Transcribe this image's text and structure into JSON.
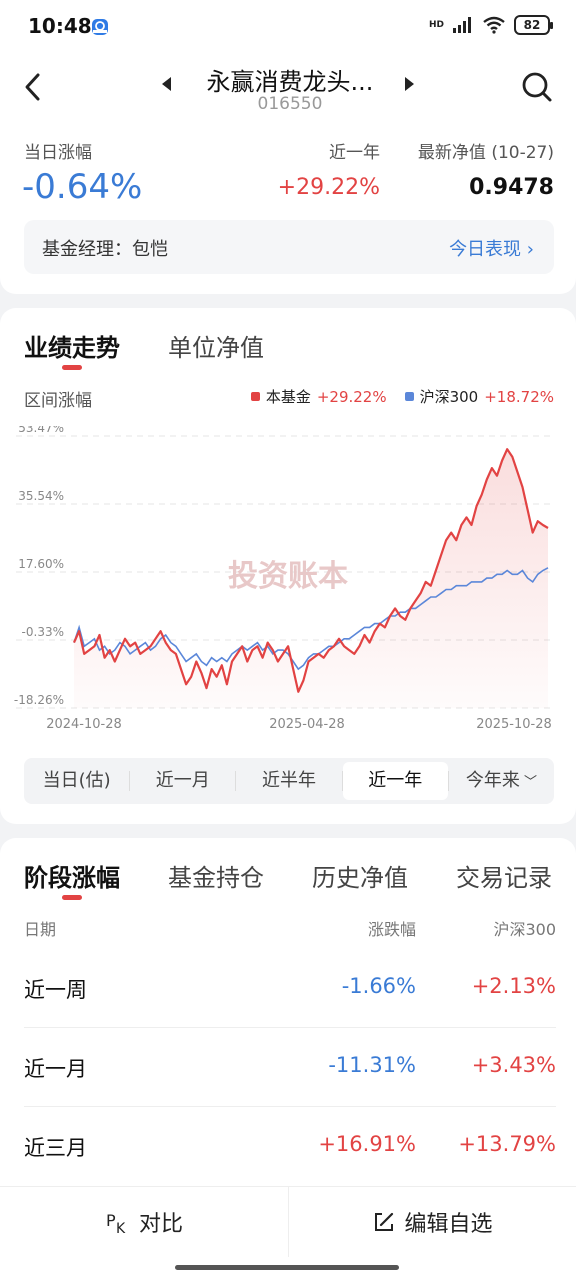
{
  "status": {
    "time": "10:48",
    "network": "HD",
    "battery": "82"
  },
  "header": {
    "fund_name": "永赢消费龙头...",
    "fund_code": "016550",
    "day_change_label": "当日涨幅",
    "day_change_value": "-0.64%",
    "year_label": "近一年",
    "year_value": "+29.22%",
    "nav_label": "最新净值 (10-27)",
    "nav_value": "0.9478",
    "manager": "基金经理：包恺",
    "today_link": "今日表现"
  },
  "chart_tabs": {
    "performance": "业绩走势",
    "unit_nav": "单位净值"
  },
  "range_label": "区间涨幅",
  "legend": {
    "fund_name": "本基金",
    "fund_value": "+29.22%",
    "fund_color": "#e24343",
    "index_name": "沪深300",
    "index_value": "+18.72%",
    "index_color": "#5b87d9"
  },
  "watermark": "投资账本",
  "chart_data": {
    "type": "line",
    "ylabels": [
      "53.47%",
      "35.54%",
      "17.60%",
      "-0.33%",
      "-18.26%"
    ],
    "yticks": [
      53.47,
      35.54,
      17.6,
      -0.33,
      -18.26
    ],
    "ylim": [
      -18.26,
      53.47
    ],
    "xlabels": [
      "2024-10-28",
      "2025-04-28",
      "2025-10-28"
    ],
    "grid": true,
    "series": [
      {
        "name": "本基金",
        "color": "#e24343",
        "values": [
          -1,
          2,
          -4,
          -3,
          -2,
          1,
          -5,
          -3,
          -6,
          -3,
          0,
          -2,
          -1,
          -4,
          -3,
          -2,
          0,
          2,
          -1,
          -3,
          -4,
          -8,
          -12,
          -10,
          -6,
          -9,
          -13,
          -8,
          -10,
          -7,
          -12,
          -6,
          -4,
          -2,
          -6,
          -3,
          -2,
          -5,
          -1,
          -3,
          -6,
          -4,
          -2,
          -8,
          -14,
          -11,
          -6,
          -5,
          -4,
          -5,
          -3,
          -2,
          0,
          -2,
          -3,
          -4,
          -2,
          1,
          -1,
          2,
          4,
          3,
          6,
          8,
          6,
          5,
          8,
          10,
          12,
          15,
          14,
          18,
          22,
          26,
          28,
          26,
          30,
          32,
          30,
          35,
          38,
          42,
          45,
          43,
          47,
          50,
          48,
          44,
          40,
          34,
          28,
          31,
          30,
          29.22
        ]
      },
      {
        "name": "沪深300",
        "color": "#5b87d9",
        "values": [
          -1,
          3,
          -2,
          -1,
          0,
          -3,
          -2,
          -4,
          -3,
          -1,
          -2,
          -4,
          -3,
          -2,
          -1,
          -3,
          -2,
          0,
          1,
          -1,
          -2,
          -4,
          -6,
          -5,
          -4,
          -6,
          -7,
          -5,
          -6,
          -5,
          -6,
          -4,
          -3,
          -2,
          -3,
          -2,
          -1,
          -3,
          -2,
          -4,
          -3,
          -3,
          -4,
          -6,
          -8,
          -7,
          -5,
          -4,
          -4,
          -3,
          -2,
          -2,
          -1,
          0,
          0,
          1,
          2,
          3,
          3,
          4,
          4,
          5,
          6,
          6,
          7,
          7,
          8,
          8,
          9,
          10,
          11,
          11,
          12,
          13,
          13,
          14,
          14,
          14,
          15,
          15,
          15,
          16,
          16,
          17,
          17,
          18,
          17,
          17,
          18,
          16,
          15,
          17,
          18,
          18.72
        ]
      }
    ]
  },
  "ranges": [
    "当日(估)",
    "近一月",
    "近半年",
    "近一年",
    "今年来"
  ],
  "active_range": "近一年",
  "section_tabs": [
    "阶段涨幅",
    "基金持仓",
    "历史净值",
    "交易记录"
  ],
  "table": {
    "col_date": "日期",
    "col_change": "涨跌幅",
    "col_index": "沪深300",
    "rows": [
      {
        "period": "近一周",
        "change": "-1.66%",
        "index": "+2.13%"
      },
      {
        "period": "近一月",
        "change": "-11.31%",
        "index": "+3.43%"
      },
      {
        "period": "近三月",
        "change": "+16.91%",
        "index": "+13.79%"
      }
    ]
  },
  "bottom": {
    "compare": "对比",
    "edit_watchlist": "编辑自选"
  }
}
